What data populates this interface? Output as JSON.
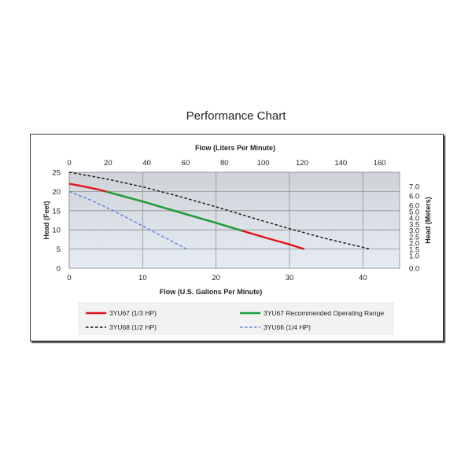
{
  "title": "Performance Chart",
  "chart_data": {
    "type": "line",
    "xlabel": "Flow (U.S. Gallons Per Minute)",
    "x2label": "Flow (Liters Per Minute)",
    "ylabel": "Head (Feet)",
    "y2label": "Head (Meters)",
    "xlim": [
      0,
      45
    ],
    "ylim": [
      0,
      25
    ],
    "x2lim": [
      0,
      170.3
    ],
    "y2lim": [
      0,
      7.62
    ],
    "xticks": [
      "0",
      "10",
      "20",
      "30",
      "40"
    ],
    "yticks": [
      "0",
      "5",
      "10",
      "15",
      "20",
      "25"
    ],
    "x2ticks": [
      "0",
      "20",
      "40",
      "60",
      "80",
      "100",
      "120",
      "140",
      "160"
    ],
    "y2ticks": [
      "0.0",
      "1.0",
      "1.5",
      "2.0",
      "2.5",
      "3.0",
      "3.5",
      "4.0",
      "5.0",
      "6.0",
      "6.0",
      "7.0"
    ],
    "grid": true,
    "legend_position": "bottom",
    "series": [
      {
        "name": "3YU67 (1/3 HP)",
        "color": "#e3151a",
        "dash": "solid",
        "x": [
          0,
          2,
          4,
          5,
          10,
          15,
          20,
          23.5,
          27,
          30,
          32
        ],
        "y": [
          22,
          21.3,
          20.5,
          20,
          17.4,
          14.6,
          11.8,
          9.8,
          7.8,
          6.2,
          5
        ]
      },
      {
        "name": "3YU67 Recommended Operating Range",
        "color": "#17a33c",
        "dash": "solid",
        "x": [
          5,
          10,
          15,
          20,
          23.5
        ],
        "y": [
          20,
          17.4,
          14.6,
          11.8,
          9.8
        ]
      },
      {
        "name": "3YU68 (1/2 HP)",
        "color": "#111111",
        "dash": "dashed",
        "x": [
          0,
          5,
          10,
          15,
          20,
          25,
          30,
          35,
          41
        ],
        "y": [
          25,
          23.3,
          21.2,
          18.7,
          16,
          13.1,
          10.3,
          7.7,
          5
        ]
      },
      {
        "name": "3YU66 (1/4 HP)",
        "color": "#5b87d6",
        "dash": "dashed",
        "x": [
          0,
          3,
          6,
          9,
          12,
          16
        ],
        "y": [
          20,
          17.7,
          15,
          12,
          9,
          5
        ]
      }
    ]
  }
}
